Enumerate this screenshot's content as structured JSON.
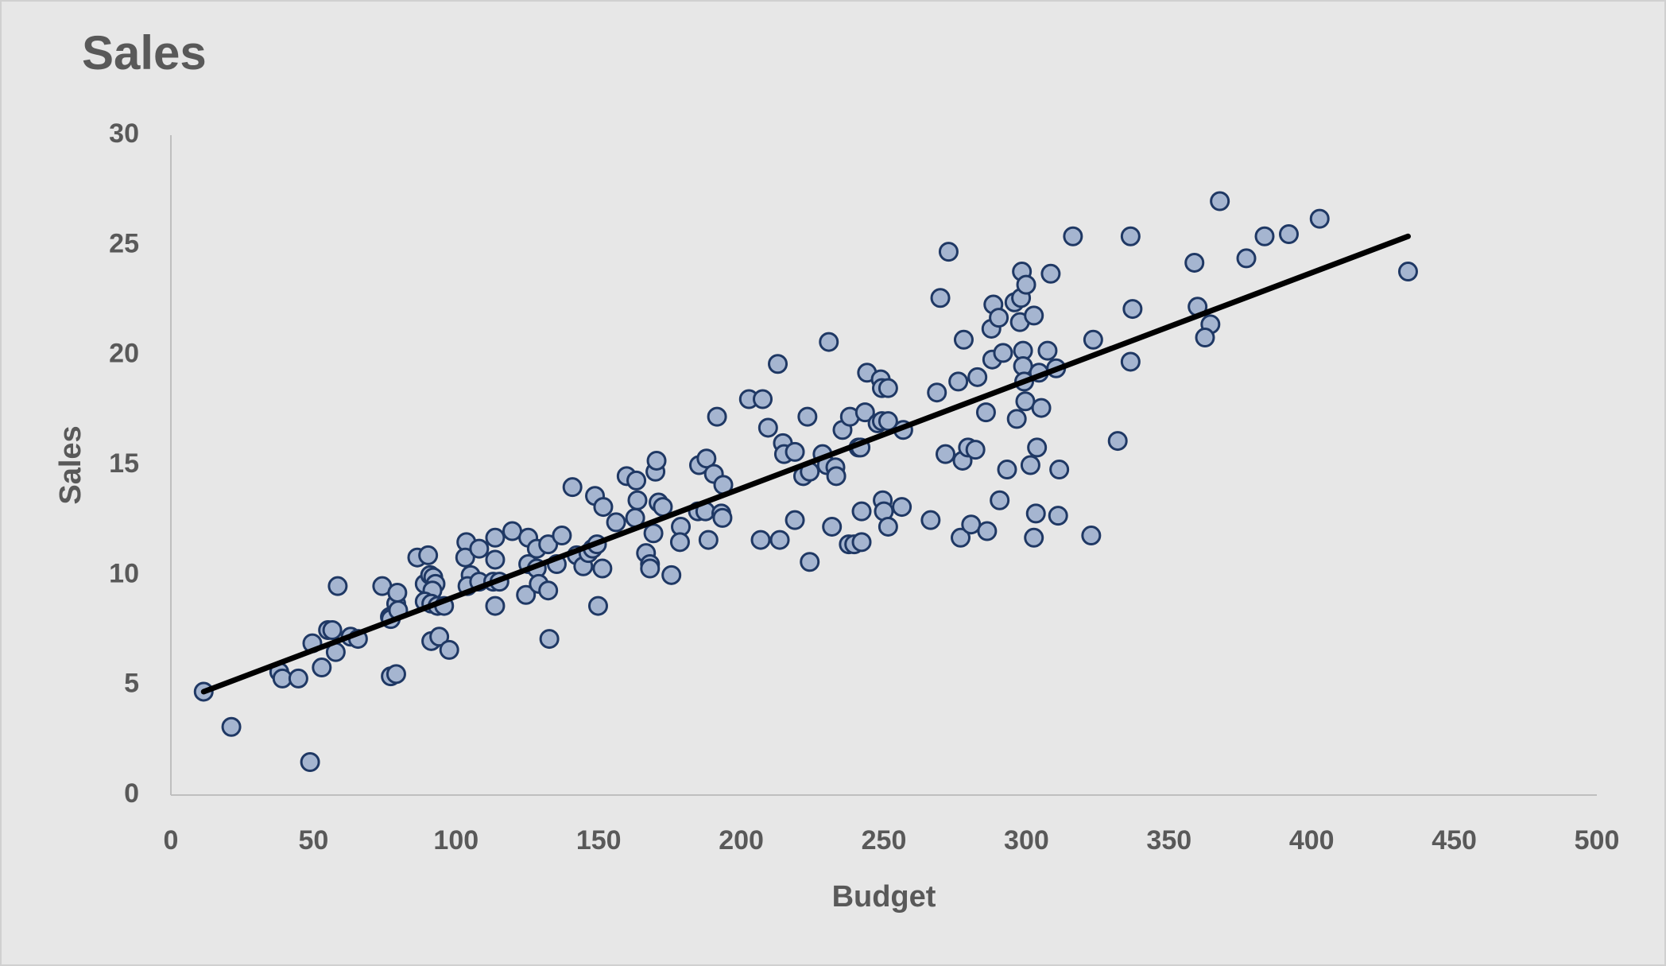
{
  "chart_data": {
    "type": "scatter",
    "title": "Sales",
    "xlabel": "Budget",
    "ylabel": "Sales",
    "x": [
      11.5,
      21.2,
      48.8,
      38,
      39.1,
      44.7,
      52.9,
      49.6,
      55.1,
      56.6,
      57.8,
      58.5,
      63,
      65.6,
      74.1,
      76.8,
      77.1,
      79,
      79.4,
      79.7,
      77.1,
      79,
      86.4,
      90.2,
      89,
      90.9,
      92,
      92.8,
      91.7,
      89,
      91.3,
      93.5,
      95.8,
      91.3,
      94.1,
      97.6,
      103.6,
      103.2,
      105.1,
      104,
      108.1,
      108.1,
      113.7,
      113.7,
      113,
      115.2,
      113.7,
      119.7,
      125.3,
      125.3,
      128.3,
      128.3,
      124.5,
      129,
      132.3,
      132.3,
      135.3,
      137.1,
      132.7,
      140.8,
      142.3,
      144.6,
      146.4,
      147.9,
      149.4,
      148.7,
      151.6,
      151.3,
      149.8,
      156.1,
      159.8,
      163.2,
      163.6,
      162.8,
      166.6,
      168,
      168,
      169.2,
      169.9,
      170.3,
      171,
      172.5,
      175.5,
      178.8,
      178.5,
      185.2,
      187.8,
      190.4,
      184.8,
      187.4,
      188.5,
      193,
      193.4,
      193.7,
      191.5,
      202.7,
      207.5,
      209.4,
      206.8,
      213.5,
      212.8,
      214.6,
      215,
      218.8,
      223.2,
      221.7,
      224,
      218.8,
      224,
      228.5,
      230,
      233,
      233.3,
      230.7,
      235.5,
      238.1,
      243.4,
      241.1,
      241.8,
      231.8,
      242.2,
      237.7,
      239.6,
      242.2,
      244.1,
      248.9,
      249.3,
      251.5,
      247.8,
      249.3,
      251.5,
      256.8,
      249.6,
      250,
      251.5,
      256.3,
      266.4,
      268.6,
      269.8,
      272.7,
      271.6,
      276.1,
      278,
      277.6,
      279.5,
      282.1,
      276.9,
      280.6,
      282.8,
      285.8,
      286.2,
      287.7,
      288.4,
      290.3,
      288,
      291.8,
      293.2,
      290.6,
      296.6,
      295.8,
      298.1,
      298.4,
      299.9,
      297.7,
      302.6,
      298.8,
      298.8,
      299.2,
      304.4,
      299.6,
      305.2,
      307.4,
      308.5,
      310.4,
      301.4,
      303.7,
      303.3,
      302.6,
      311.1,
      311.5,
      316.3,
      323.4,
      322.7,
      332,
      336.5,
      337.2,
      336.5,
      358.9,
      360,
      364.5,
      362.6,
      367.8,
      377.1,
      383.5,
      392,
      402.8,
      433.8
    ],
    "values": [
      4.7,
      3.1,
      1.5,
      5.6,
      5.3,
      5.3,
      5.8,
      6.9,
      7.5,
      7.5,
      6.5,
      9.5,
      7.2,
      7.1,
      9.5,
      8.1,
      8,
      8.7,
      9.2,
      8.4,
      5.4,
      5.5,
      10.8,
      10.9,
      9.6,
      10,
      9.9,
      9.6,
      9.3,
      8.8,
      8.7,
      8.6,
      8.6,
      7,
      7.2,
      6.6,
      11.5,
      10.8,
      10,
      9.5,
      11.2,
      9.7,
      11.7,
      10.7,
      9.7,
      9.7,
      8.6,
      12,
      11.7,
      10.5,
      11.2,
      10.3,
      9.1,
      9.6,
      9.3,
      11.4,
      10.5,
      11.8,
      7.1,
      14,
      10.9,
      10.4,
      11,
      11.2,
      11.4,
      13.6,
      13.1,
      10.3,
      8.6,
      12.4,
      14.5,
      14.3,
      13.4,
      12.6,
      11,
      10.5,
      10.3,
      11.9,
      14.7,
      15.2,
      13.3,
      13.1,
      10,
      12.2,
      11.5,
      15,
      15.3,
      14.6,
      12.9,
      12.9,
      11.6,
      12.8,
      12.6,
      14.1,
      17.2,
      18,
      18,
      16.7,
      11.6,
      11.6,
      19.6,
      16,
      15.5,
      15.6,
      17.2,
      14.5,
      14.7,
      12.5,
      10.6,
      15.5,
      15,
      14.9,
      14.5,
      20.6,
      16.6,
      17.2,
      17.4,
      15.8,
      15.8,
      12.2,
      12.9,
      11.4,
      11.4,
      11.5,
      19.2,
      18.9,
      18.5,
      18.5,
      16.9,
      17,
      17,
      16.6,
      13.4,
      12.9,
      12.2,
      13.1,
      12.5,
      18.3,
      22.6,
      24.7,
      15.5,
      18.8,
      20.7,
      15.2,
      15.8,
      15.7,
      11.7,
      12.3,
      19,
      17.4,
      12,
      21.2,
      22.3,
      21.7,
      19.8,
      20.1,
      14.8,
      13.4,
      17.1,
      22.4,
      22.6,
      23.8,
      23.2,
      21.5,
      21.8,
      20.2,
      19.5,
      18.8,
      19.2,
      17.9,
      17.6,
      20.2,
      23.7,
      19.4,
      15,
      15.8,
      12.8,
      11.7,
      12.7,
      14.8,
      25.4,
      20.7,
      11.8,
      16.1,
      25.4,
      22.1,
      19.7,
      24.2,
      22.2,
      21.4,
      20.8,
      27,
      24.4,
      25.4,
      25.5,
      26.2,
      23.8
    ],
    "color": "#a5b5d0",
    "edgecolor": "#1f3864",
    "trendline": {
      "x": [
        11.5,
        433.8
      ],
      "values": [
        4.7,
        25.4
      ],
      "color": "#000000"
    },
    "xlim": [
      0,
      500
    ],
    "xticks": [
      0,
      50,
      100,
      150,
      200,
      250,
      300,
      350,
      400,
      450,
      500
    ],
    "ylim": [
      0,
      30
    ],
    "yticks": [
      0,
      5,
      10,
      15,
      20,
      25,
      30
    ],
    "grid": false
  }
}
